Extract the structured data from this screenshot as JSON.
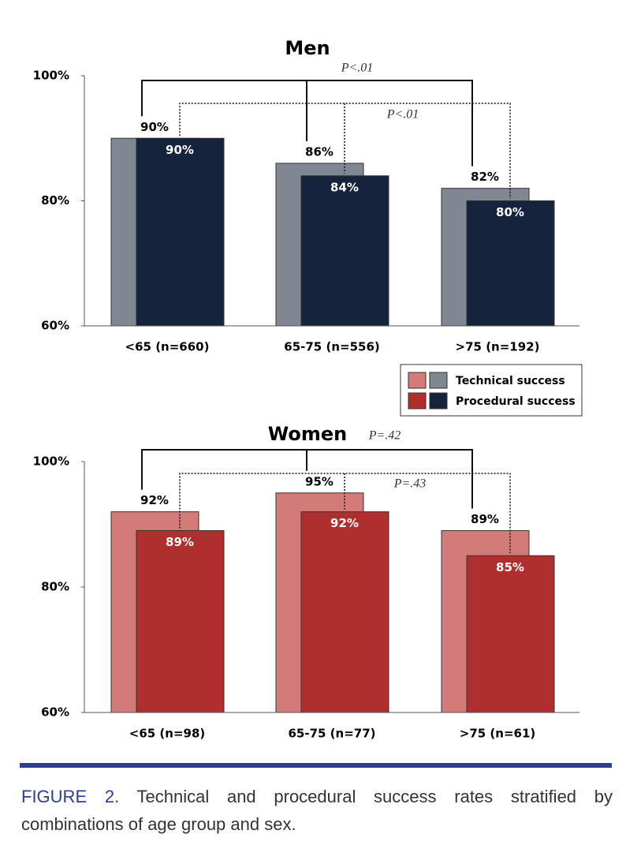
{
  "chart_data": [
    {
      "type": "bar",
      "title": "Men",
      "categories": [
        "<65 (n=660)",
        "65-75 (n=556)",
        ">75 (n=192)"
      ],
      "series": [
        {
          "name": "Technical success",
          "color": "#7f8793",
          "values": [
            90,
            86,
            82
          ],
          "value_labels": [
            "90%",
            "86%",
            "82%"
          ]
        },
        {
          "name": "Procedural success",
          "color": "#16233d",
          "values": [
            90,
            84,
            80
          ],
          "value_labels": [
            "90%",
            "84%",
            "80%"
          ]
        }
      ],
      "ylim": [
        60,
        100
      ],
      "yticks": [
        {
          "value": 60,
          "label": "60%"
        },
        {
          "value": 80,
          "label": "80%"
        },
        {
          "value": 100,
          "label": "100%"
        }
      ],
      "annotations": [
        "P<.01",
        "P<.01"
      ]
    },
    {
      "type": "bar",
      "title": "Women",
      "categories": [
        "<65 (n=98)",
        "65-75 (n=77)",
        ">75 (n=61)"
      ],
      "series": [
        {
          "color": "#d37b79",
          "values": [
            92,
            95,
            89
          ],
          "value_labels": [
            "92%",
            "95%",
            "89%"
          ]
        },
        {
          "color": "#ae2f2e",
          "values": [
            89,
            92,
            85
          ],
          "value_labels": [
            "89%",
            "92%",
            "85%"
          ]
        }
      ],
      "ylim": [
        60,
        100
      ],
      "yticks": [
        {
          "value": 60,
          "label": "60%"
        },
        {
          "value": 80,
          "label": "80%"
        },
        {
          "value": 100,
          "label": "100%"
        }
      ],
      "annotations": [
        "P=.42",
        "P=.43"
      ]
    }
  ],
  "caption": {
    "label": "FIGURE 2.",
    "text": "Technical and procedural success rates stratified by combinations of age group and sex."
  }
}
